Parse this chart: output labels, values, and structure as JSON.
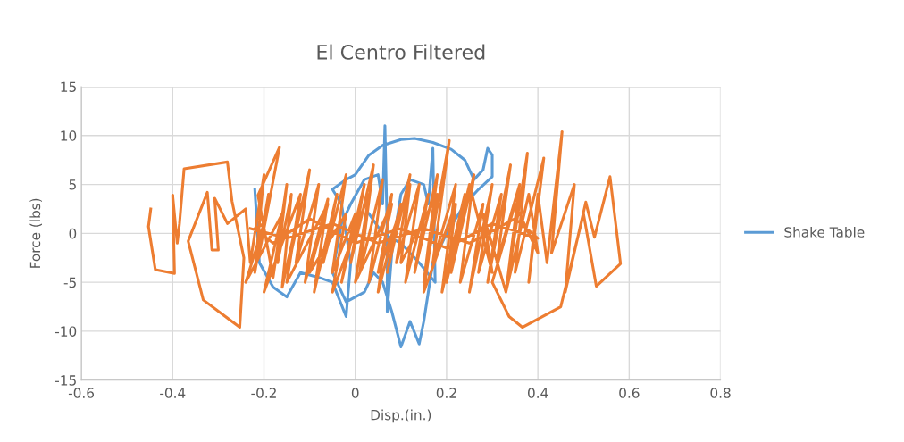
{
  "chart_data": {
    "type": "line",
    "title": "El Centro Filtered",
    "xlabel": "Disp.(in.)",
    "ylabel": "Force (lbs)",
    "xlim": [
      -0.6,
      0.8
    ],
    "xticks": [
      -0.6,
      -0.4,
      -0.2,
      0,
      0.2,
      0.4,
      0.6,
      0.8
    ],
    "ylim": [
      -15,
      15
    ],
    "yticks": [
      -15,
      -10,
      -5,
      0,
      5,
      10,
      15
    ],
    "grid": true,
    "legend": "right",
    "marker": "none",
    "line_style": "solid",
    "series": [
      {
        "name": "Shake Table",
        "color": "#5b9bd5",
        "x": [
          -0.22,
          -0.21,
          -0.18,
          -0.15,
          -0.12,
          -0.08,
          -0.05,
          -0.02,
          -0.01,
          -0.03,
          -0.05,
          -0.02,
          0.0,
          0.03,
          0.06,
          0.1,
          0.13,
          0.17,
          0.21,
          0.24,
          0.26,
          0.28,
          0.29,
          0.3,
          0.3,
          0.27,
          0.24,
          0.2,
          0.17,
          0.16,
          0.15,
          0.14,
          0.12,
          0.1,
          0.08,
          0.06,
          0.04,
          0.02,
          -0.02,
          -0.05,
          -0.03,
          -0.01,
          0.02,
          0.05,
          0.06,
          0.065,
          0.07,
          0.07,
          0.08,
          0.1,
          0.12,
          0.15,
          0.16,
          0.17,
          0.175,
          0.14,
          0.1,
          0.06,
          0.03
        ],
        "values": [
          4.5,
          -3,
          -5.5,
          -6.5,
          -4,
          -4.5,
          -5,
          -8.5,
          -3,
          3,
          4.5,
          5.5,
          6,
          8,
          9,
          9.6,
          9.7,
          9.3,
          8.6,
          7.5,
          5.5,
          6.5,
          8.7,
          8,
          5.8,
          4.5,
          3,
          0,
          -3,
          -6,
          -9,
          -11.3,
          -9,
          -11.6,
          -8,
          -5,
          -4,
          -6,
          -7,
          -4,
          1,
          3,
          5.5,
          6,
          3,
          11,
          0,
          -8,
          -2,
          4,
          5.5,
          5,
          3,
          8.7,
          -5,
          -3,
          -1,
          0,
          2
        ]
      },
      {
        "color": "#ed7d31",
        "x": [
          -0.448,
          -0.453,
          -0.438,
          -0.396,
          -0.4,
          -0.39,
          -0.385,
          -0.375,
          -0.28,
          -0.27,
          -0.244,
          -0.253,
          -0.333,
          -0.366,
          -0.324,
          -0.314,
          -0.3,
          -0.308,
          -0.28,
          -0.24,
          -0.23,
          -0.2,
          -0.22,
          -0.19,
          -0.21,
          -0.166,
          -0.213,
          -0.18,
          -0.15,
          -0.17,
          -0.14,
          -0.16,
          -0.12,
          -0.15,
          -0.1,
          -0.13,
          -0.08,
          -0.11,
          -0.06,
          -0.09,
          -0.04,
          -0.07,
          -0.02,
          -0.05,
          0.0,
          -0.03,
          0.02,
          -0.01,
          0.04,
          0.01,
          0.06,
          0.03,
          0.08,
          0.05,
          0.1,
          0.07,
          0.12,
          0.09,
          0.14,
          0.11,
          0.16,
          0.13,
          0.18,
          0.15,
          0.206,
          0.17,
          0.22,
          0.19,
          0.24,
          0.21,
          0.26,
          0.23,
          0.28,
          0.25,
          0.3,
          0.27,
          0.32,
          0.29,
          0.34,
          0.31,
          0.36,
          0.33,
          0.377,
          0.35,
          0.413,
          0.38,
          0.4,
          0.42,
          0.453,
          0.43,
          0.48,
          0.46,
          0.505,
          0.524,
          0.558,
          0.581,
          0.528,
          0.5,
          0.45,
          0.366,
          0.337,
          0.3,
          0.35,
          0.4,
          0.38,
          0.33,
          0.28,
          0.3,
          0.25,
          0.2,
          0.22,
          0.15,
          0.18,
          0.1,
          0.12,
          0.05,
          0.08,
          0.0,
          0.03,
          -0.05,
          -0.02,
          -0.1,
          -0.06,
          -0.15,
          -0.12,
          -0.2,
          -0.16,
          -0.24,
          -0.2,
          -0.22,
          -0.18,
          -0.1,
          0.0,
          0.1,
          0.2,
          0.3,
          0.4,
          0.35,
          0.25,
          0.15,
          0.05,
          -0.05,
          -0.15,
          -0.23
        ],
        "values": [
          2.5,
          0.7,
          -3.7,
          -4.1,
          3.9,
          -1,
          1,
          6.6,
          7.3,
          3.3,
          -2.5,
          -9.6,
          -6.8,
          -0.8,
          4.2,
          -1.7,
          -1.7,
          3.6,
          1,
          2.5,
          -3,
          6,
          -4,
          4,
          -2,
          8.8,
          3.9,
          -4.5,
          5,
          -3,
          4,
          -5.5,
          3,
          -4,
          6.5,
          -3,
          5,
          -5,
          3.5,
          -6,
          4,
          -3,
          6,
          -4,
          2,
          -5,
          5,
          -3,
          7,
          -4,
          5.5,
          -5,
          4,
          -6,
          3,
          -4,
          6,
          -3,
          5,
          -5,
          4,
          -4,
          6,
          -5,
          9.5,
          -3,
          5,
          -6,
          4,
          -4,
          6,
          -5,
          3,
          -6,
          5,
          -4,
          4,
          -5,
          7,
          -3,
          5,
          -6,
          8.2,
          -4,
          7.7,
          -5,
          4,
          -3,
          10.4,
          -2,
          5,
          -6,
          3.2,
          -0.4,
          5.8,
          -3.1,
          -5.4,
          2,
          -7.5,
          -9.6,
          -8.5,
          -5,
          3,
          -2,
          4,
          -6,
          2,
          -4,
          5,
          -5,
          3,
          -6,
          4,
          -3,
          5,
          -4,
          3,
          -5,
          4,
          -6,
          2,
          -4,
          3,
          -5,
          4,
          -6,
          2,
          -5,
          1,
          0.5,
          -1,
          1.5,
          -1,
          0.5,
          -1.5,
          1,
          -0.5,
          1.5,
          -1,
          0.5,
          -1,
          1,
          -0.5,
          0.5
        ]
      }
    ]
  }
}
